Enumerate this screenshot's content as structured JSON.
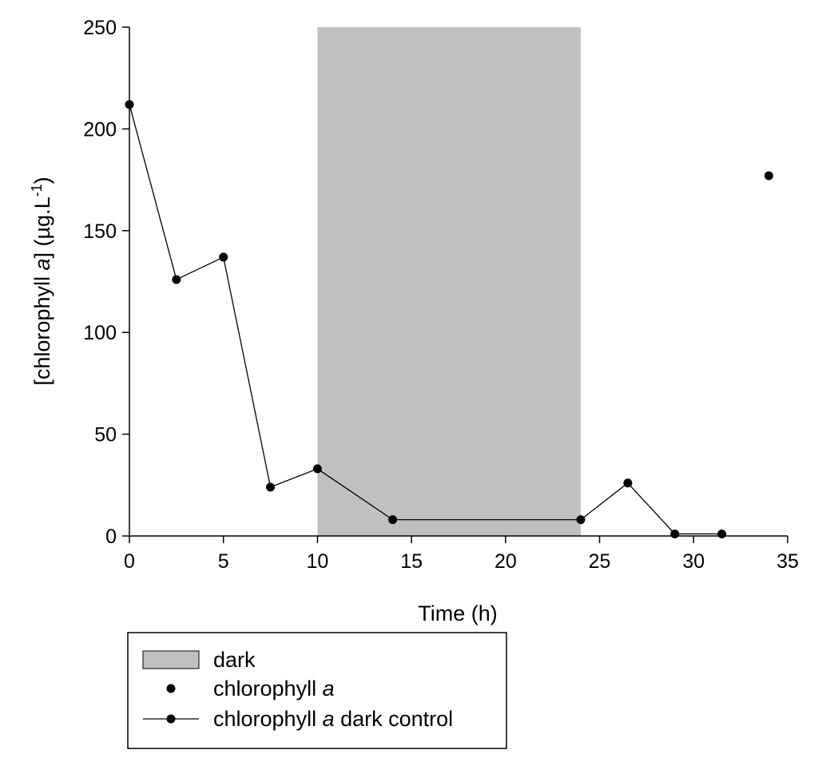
{
  "chart_data": {
    "type": "scatter",
    "title": "",
    "xlabel": "Time (h)",
    "ylabel": {
      "prefix": "[chlorophyll ",
      "italic": "a",
      "middle": "] (µg.L",
      "superscript": "-1",
      "suffix": ")"
    },
    "xlim": [
      0,
      35
    ],
    "ylim": [
      0,
      250
    ],
    "xticks": [
      0,
      5,
      10,
      15,
      20,
      25,
      30,
      35
    ],
    "yticks": [
      0,
      50,
      100,
      150,
      200,
      250
    ],
    "grid": false,
    "legend_position": "bottom-left",
    "shaded_regions": [
      {
        "name": "dark",
        "x_start": 10,
        "x_end": 24,
        "color": "#c0c0c0"
      }
    ],
    "series": [
      {
        "name": {
          "prefix": "chlorophyll ",
          "italic": "a",
          "suffix": ""
        },
        "style": "markers",
        "color": "#000000",
        "x": [
          34
        ],
        "y": [
          177
        ]
      },
      {
        "name": {
          "prefix": "chlorophyll ",
          "italic": "a",
          "suffix": " dark control"
        },
        "style": "line+markers",
        "color": "#000000",
        "x": [
          0,
          2.5,
          5,
          7.5,
          10,
          14,
          24,
          26.5,
          29,
          31.5
        ],
        "y": [
          212,
          126,
          137,
          24,
          33,
          8,
          8,
          26,
          1,
          1
        ]
      }
    ],
    "legend": [
      {
        "kind": "patch",
        "label": {
          "prefix": "dark",
          "italic": "",
          "suffix": ""
        }
      },
      {
        "kind": "marker",
        "label": {
          "prefix": "chlorophyll ",
          "italic": "a",
          "suffix": ""
        }
      },
      {
        "kind": "line-marker",
        "label": {
          "prefix": "chlorophyll ",
          "italic": "a",
          "suffix": " dark control"
        }
      }
    ]
  }
}
